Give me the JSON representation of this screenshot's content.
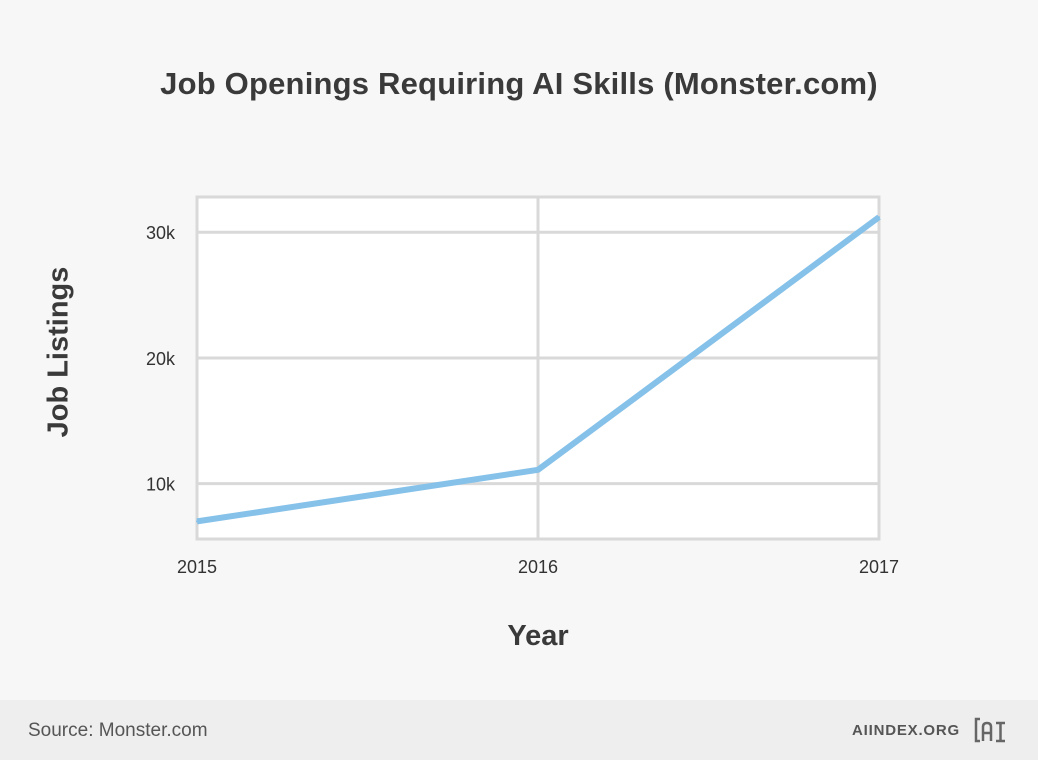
{
  "page": {
    "title": "Job Openings Requiring AI Skills (Monster.com)",
    "source": "Source: Monster.com",
    "brand": "AIINDEX.ORG",
    "logo_icon": "ai-index-logo-icon"
  },
  "chart_data": {
    "type": "line",
    "title": "Job Openings Requiring AI Skills (Monster.com)",
    "xlabel": "Year",
    "ylabel": "Job Listings",
    "x": [
      "2015",
      "2016",
      "2017"
    ],
    "series": [
      {
        "values": [
          7000,
          11100,
          31200
        ],
        "color": "#85c1e9"
      }
    ],
    "y_ticks": [
      {
        "value": 10000,
        "label": "10k"
      },
      {
        "value": 20000,
        "label": "20k"
      },
      {
        "value": 30000,
        "label": "30k"
      }
    ],
    "ylim": [
      5600,
      32800
    ],
    "grid": true,
    "legend": "none"
  }
}
